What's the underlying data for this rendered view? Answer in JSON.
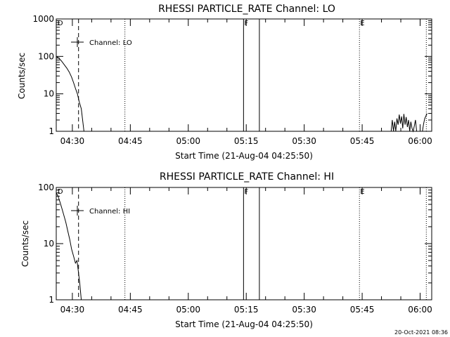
{
  "footer": {
    "timestamp": "20-Oct-2021 08:36"
  },
  "colors": {
    "line": "#000000",
    "background": "#ffffff"
  },
  "chart_data": [
    {
      "type": "line",
      "title": "RHESSI PARTICLE_RATE Channel: LO",
      "xlabel": "Start Time (21-Aug-04 04:25:50)",
      "ylabel": "Counts/sec",
      "y_scale": "log",
      "ylim": [
        1,
        1000
      ],
      "y_ticks": [
        1,
        10,
        100,
        1000
      ],
      "y_tick_labels": [
        "1",
        "10",
        "100",
        "1000"
      ],
      "xlim_min": [
        265.83,
        363.0
      ],
      "x_ticks_min": [
        270,
        285,
        300,
        315,
        330,
        345,
        360
      ],
      "x_tick_labels": [
        "04:30",
        "04:45",
        "05:00",
        "05:15",
        "05:30",
        "05:45",
        "06:00"
      ],
      "legend": {
        "label": "Channel: LO",
        "position": "top-left"
      },
      "markers": [
        {
          "label": "D",
          "x_min": 266.0
        },
        {
          "label": "F",
          "x_min": 314.3
        },
        {
          "label": "E",
          "x_min": 344.3
        }
      ],
      "dashed_lines_min": [
        271.6
      ],
      "dotted_lines_min": [
        283.6,
        344.3,
        361.6
      ],
      "solid_lines_min": [
        314.3,
        318.4
      ],
      "series": [
        {
          "x_min": [
            265.83,
            266.5,
            267.2,
            267.9,
            268.6,
            269.2,
            269.8,
            270.3,
            270.8,
            271.3,
            271.8,
            272.3,
            272.8,
            273.0
          ],
          "y": [
            100,
            90,
            75,
            60,
            48,
            38,
            28,
            20,
            14,
            10,
            6,
            4,
            1.5,
            1
          ]
        },
        {
          "x_min": [
            352.5,
            352.8,
            353.1,
            353.4,
            353.7,
            354.0,
            354.3,
            354.6,
            354.9,
            355.2,
            355.5,
            355.8,
            356.1,
            356.4,
            356.7,
            357.0,
            357.3,
            357.6,
            357.9,
            358.2,
            358.5,
            358.8,
            359.1
          ],
          "y": [
            1,
            2,
            1,
            1.8,
            1,
            2.2,
            1.5,
            2.8,
            1.6,
            2.5,
            1.2,
            2.9,
            1.5,
            2.4,
            1.3,
            2.0,
            1.0,
            1.8,
            1.2,
            1.0,
            1.4,
            2.0,
            1.0
          ]
        },
        {
          "x_min": [
            360.6,
            360.9,
            361.2,
            361.5,
            361.8
          ],
          "y": [
            1,
            1.6,
            2.2,
            2.6,
            3.0
          ]
        }
      ]
    },
    {
      "type": "line",
      "title": "RHESSI PARTICLE_RATE Channel: HI",
      "xlabel": "Start Time (21-Aug-04 04:25:50)",
      "ylabel": "Counts/sec",
      "y_scale": "log",
      "ylim": [
        1,
        100
      ],
      "y_ticks": [
        1,
        10,
        100
      ],
      "y_tick_labels": [
        "1",
        "10",
        "100"
      ],
      "xlim_min": [
        265.83,
        363.0
      ],
      "x_ticks_min": [
        270,
        285,
        300,
        315,
        330,
        345,
        360
      ],
      "x_tick_labels": [
        "04:30",
        "04:45",
        "05:00",
        "05:15",
        "05:30",
        "05:45",
        "06:00"
      ],
      "legend": {
        "label": "Channel: HI",
        "position": "top-left"
      },
      "markers": [
        {
          "label": "D",
          "x_min": 266.0
        },
        {
          "label": "F",
          "x_min": 314.3
        },
        {
          "label": "E",
          "x_min": 344.3
        }
      ],
      "dashed_lines_min": [
        271.6
      ],
      "dotted_lines_min": [
        283.6,
        344.3,
        361.6
      ],
      "solid_lines_min": [
        314.3,
        318.4
      ],
      "series": [
        {
          "x_min": [
            265.83,
            266.3,
            266.8,
            267.3,
            267.8,
            268.3,
            268.8,
            269.3,
            269.8,
            270.3,
            270.8,
            271.2,
            271.6,
            271.9,
            272.1,
            272.3
          ],
          "y": [
            80,
            70,
            55,
            42,
            32,
            24,
            17,
            12,
            8,
            6,
            4.5,
            5,
            3,
            2,
            1.4,
            1
          ]
        }
      ]
    }
  ]
}
